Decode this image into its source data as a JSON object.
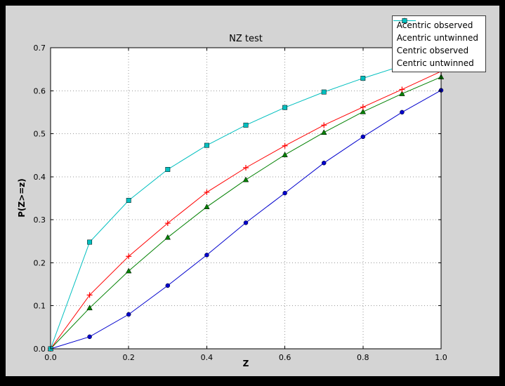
{
  "colors": {
    "figure_bg": "#d4d4d4",
    "plot_bg": "#ffffff",
    "grid": "#999999",
    "axis_border": "#000000",
    "legend_border": "#3a3a3a"
  },
  "chart_data": {
    "type": "line",
    "title": "NZ test",
    "xlabel": "Z",
    "ylabel": "P(Z>=z)",
    "xlim": [
      0.0,
      1.0
    ],
    "ylim": [
      0.0,
      0.7
    ],
    "xticks": [
      0.0,
      0.2,
      0.4,
      0.6,
      0.8,
      1.0
    ],
    "yticks": [
      0.0,
      0.1,
      0.2,
      0.3,
      0.4,
      0.5,
      0.6,
      0.7
    ],
    "grid": true,
    "grid_style": "dotted",
    "legend_position": "upper right",
    "x": [
      0.0,
      0.1,
      0.2,
      0.3,
      0.4,
      0.5,
      0.6,
      0.7,
      0.8,
      0.9,
      1.0
    ],
    "series": [
      {
        "name": "Acentric observed",
        "color": "#0000cd",
        "marker": "circle",
        "values": [
          0.0,
          0.028,
          0.08,
          0.147,
          0.218,
          0.293,
          0.362,
          0.432,
          0.493,
          0.55,
          0.601
        ]
      },
      {
        "name": "Acentric untwinned",
        "color": "#008000",
        "marker": "triangle",
        "values": [
          0.0,
          0.095,
          0.181,
          0.259,
          0.33,
          0.393,
          0.451,
          0.503,
          0.551,
          0.593,
          0.632
        ]
      },
      {
        "name": "Centric observed",
        "color": "#ff0000",
        "marker": "plus",
        "values": [
          0.0,
          0.125,
          0.215,
          0.292,
          0.364,
          0.421,
          0.472,
          0.52,
          0.562,
          0.603,
          0.645
        ]
      },
      {
        "name": "Centric untwinned",
        "color": "#00bfbf",
        "marker": "square",
        "values": [
          0.0,
          0.248,
          0.345,
          0.417,
          0.473,
          0.52,
          0.561,
          0.597,
          0.629,
          0.658,
          0.683
        ]
      }
    ]
  }
}
